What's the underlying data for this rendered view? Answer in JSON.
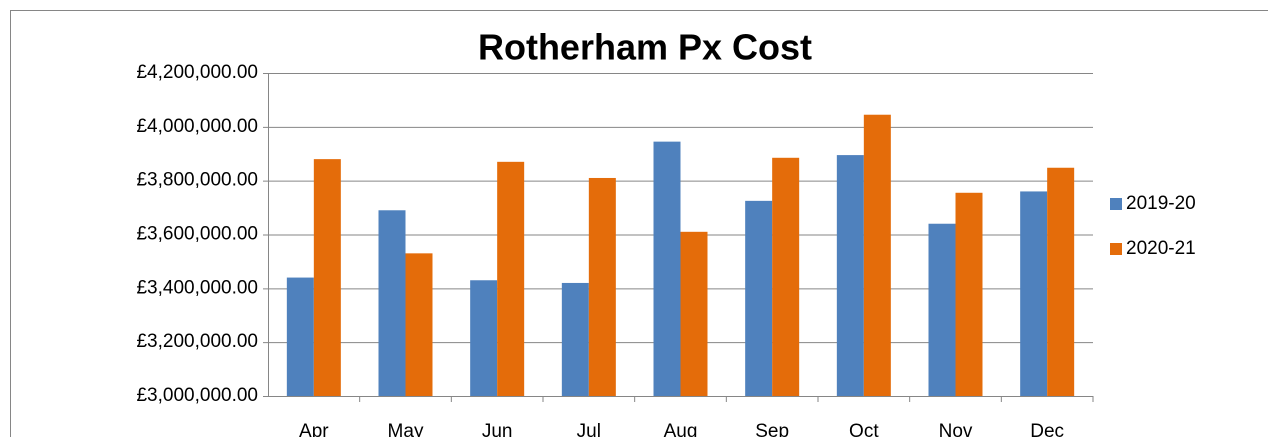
{
  "chart_data": {
    "type": "bar",
    "title": "Rotherham Px Cost",
    "categories": [
      "Apr",
      "May",
      "Jun",
      "Jul",
      "Aug",
      "Sep",
      "Oct",
      "Nov",
      "Dec"
    ],
    "series": [
      {
        "name": "2019-20",
        "color": "#4f81bd",
        "values": [
          3440000,
          3690000,
          3430000,
          3420000,
          3945000,
          3725000,
          3895000,
          3640000,
          3760000
        ]
      },
      {
        "name": "2020-21",
        "color": "#e46c0a",
        "values": [
          3880000,
          3530000,
          3870000,
          3810000,
          3610000,
          3885000,
          4045000,
          3755000,
          3848000
        ]
      }
    ],
    "ylim": [
      3000000,
      4200000
    ],
    "yticks": [
      {
        "value": 3000000,
        "label": "£3,000,000.00"
      },
      {
        "value": 3200000,
        "label": "£3,200,000.00"
      },
      {
        "value": 3400000,
        "label": "£3,400,000.00"
      },
      {
        "value": 3600000,
        "label": "£3,600,000.00"
      },
      {
        "value": 3800000,
        "label": "£3,800,000.00"
      },
      {
        "value": 4000000,
        "label": "£4,000,000.00"
      },
      {
        "value": 4200000,
        "label": "£4,200,000.00"
      }
    ],
    "grid": true,
    "legend": "right"
  }
}
